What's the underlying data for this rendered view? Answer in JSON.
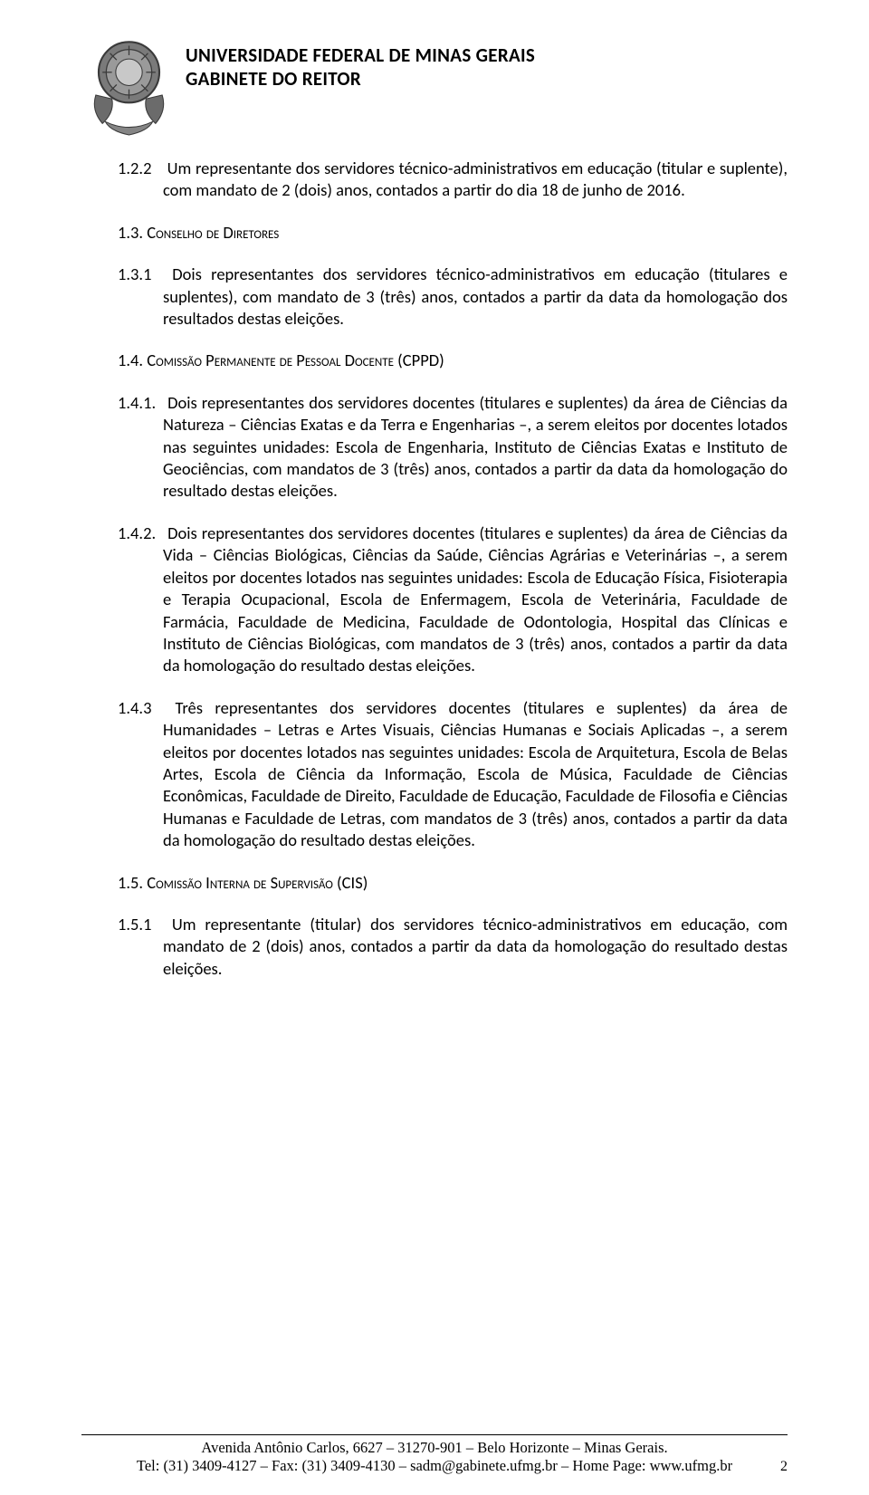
{
  "header": {
    "line1": "UNIVERSIDADE FEDERAL DE MINAS GERAIS",
    "line2": "GABINETE DO REITOR"
  },
  "items": [
    {
      "level": "l2",
      "num": "1.2.2",
      "text": "Um representante dos servidores técnico-administrativos em educação (titular e suplente), com mandato de 2 (dois) anos, contados a partir do dia 18 de junho de 2016."
    },
    {
      "level": "l1",
      "num": "1.3.",
      "text": "Conselho de Diretores",
      "smallcaps": true
    },
    {
      "level": "l2",
      "num": "1.3.1",
      "text": "Dois representantes dos servidores técnico-administrativos em educação (titulares e suplentes), com mandato de 3 (três) anos, contados a partir da data da homologação dos resultados destas eleições."
    },
    {
      "level": "l1",
      "num": "1.4.",
      "text": "Comissão Permanente de Pessoal Docente (CPPD)",
      "smallcaps": true
    },
    {
      "level": "l2b",
      "num": "1.4.1.",
      "text": "Dois representantes dos servidores docentes (titulares e suplentes) da área de Ciências da Natureza – Ciências Exatas e da Terra e Engenharias –, a serem eleitos por docentes lotados nas seguintes unidades: Escola de Engenharia, Instituto de Ciências Exatas e Instituto de Geociências, com mandatos de 3 (três) anos, contados a partir da data da homologação do resultado destas eleições."
    },
    {
      "level": "l2b",
      "num": "1.4.2.",
      "text": "Dois representantes dos servidores docentes (titulares e suplentes) da área de Ciências da Vida – Ciências Biológicas, Ciências da Saúde, Ciências Agrárias e Veterinárias –, a serem eleitos por docentes lotados nas seguintes unidades: Escola de Educação Física, Fisioterapia e Terapia Ocupacional, Escola de Enfermagem, Escola de Veterinária, Faculdade de Farmácia, Faculdade de Medicina, Faculdade de Odontologia, Hospital das Clínicas e Instituto de Ciências Biológicas, com mandatos de 3 (três) anos, contados a partir da data da homologação do resultado destas eleições."
    },
    {
      "level": "l2",
      "num": "1.4.3",
      "text": "Três representantes dos servidores docentes (titulares e suplentes) da área de Humanidades – Letras e Artes Visuais, Ciências Humanas e Sociais Aplicadas –, a serem eleitos por docentes lotados nas seguintes unidades: Escola de Arquitetura, Escola de Belas Artes, Escola de Ciência da Informação, Escola de Música, Faculdade de Ciências Econômicas, Faculdade de Direito, Faculdade de Educação, Faculdade de Filosofia e Ciências Humanas e Faculdade de Letras, com mandatos de 3 (três) anos, contados a partir da data da homologação do resultado destas eleições."
    },
    {
      "level": "l1",
      "num": "1.5.",
      "text": "Comissão Interna de Supervisão (CIS)",
      "smallcaps": true
    },
    {
      "level": "l2",
      "num": "1.5.1",
      "text": "Um representante (titular) dos servidores técnico-administrativos em educação, com mandato de 2 (dois) anos, contados a partir da data da homologação do resultado destas eleições."
    }
  ],
  "footer": {
    "line1": "Avenida Antônio Carlos, 6627 – 31270-901 – Belo Horizonte – Minas Gerais.",
    "line2": "Tel: (31) 3409-4127 – Fax: (31) 3409-4130 – sadm@gabinete.ufmg.br – Home Page: www.ufmg.br"
  },
  "page_number": "2",
  "colors": {
    "text": "#000000",
    "background": "#ffffff",
    "crest_fill": "#6b6b6b",
    "crest_stroke": "#3a3a3a"
  }
}
